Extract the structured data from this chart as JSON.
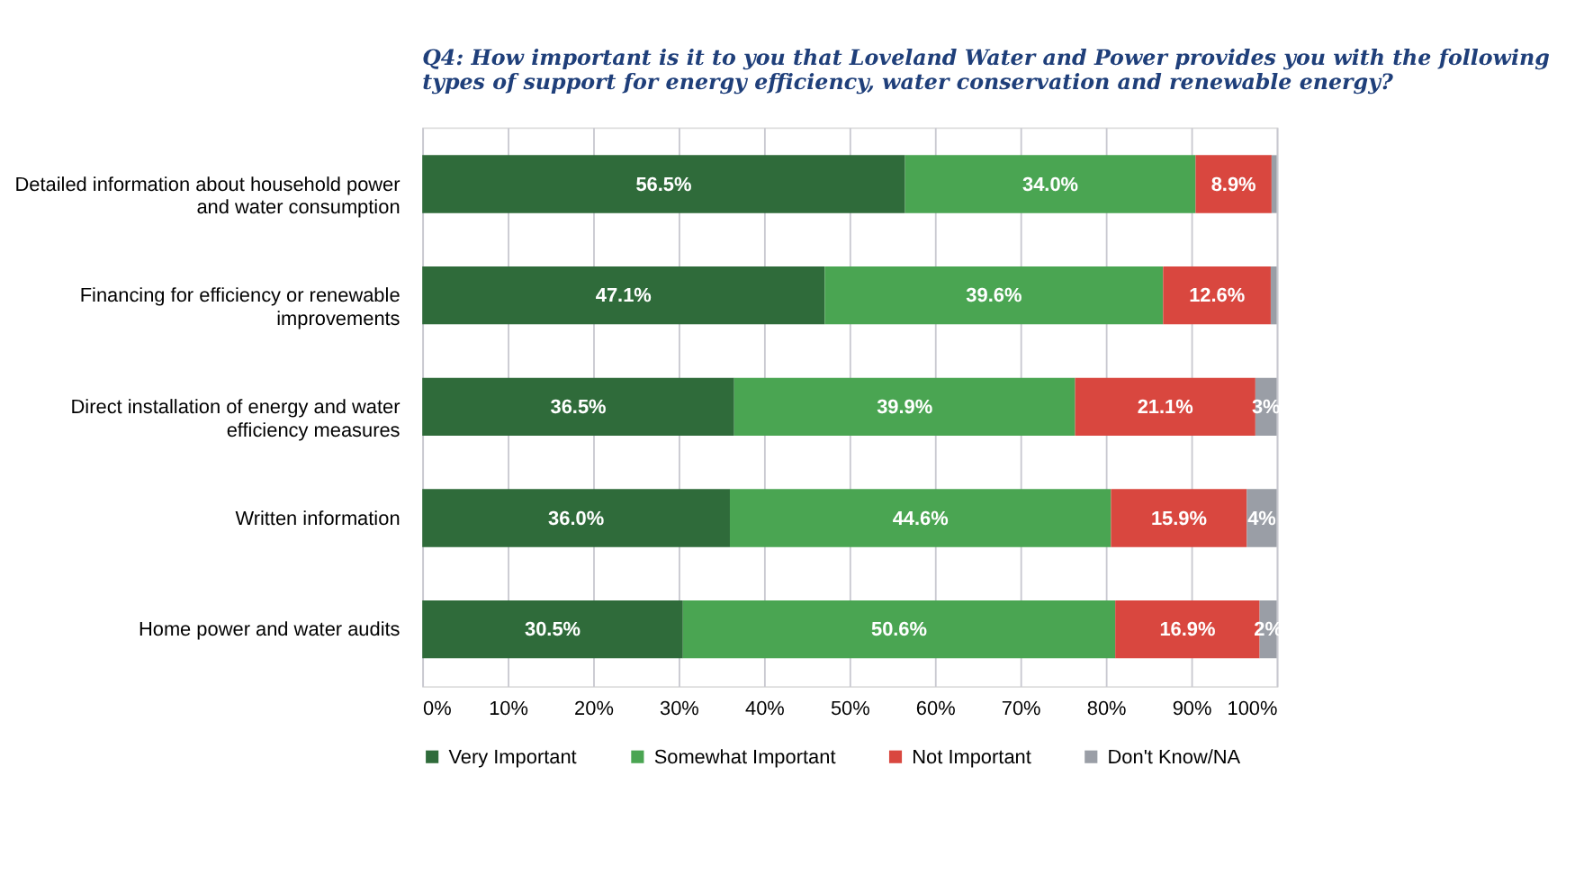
{
  "chart_data": {
    "type": "bar",
    "orientation": "horizontal",
    "stacked": true,
    "title": "Q4: How important is it to you that Loveland Water and Power provides you with the following types of support for energy efficiency, water conservation and renewable energy?",
    "categories": [
      "Detailed information about household power and water consumption",
      "Financing for efficiency or renewable improvements",
      "Direct installation of energy and water efficiency measures",
      "Written information",
      "Home power and water audits"
    ],
    "series": [
      {
        "name": "Very Important",
        "color": "#2f6b3a",
        "values": [
          56.5,
          47.1,
          36.5,
          36.0,
          30.5
        ],
        "value_labels": [
          "56.5%",
          "47.1%",
          "36.5%",
          "36.0%",
          "30.5%"
        ]
      },
      {
        "name": "Somewhat Important",
        "color": "#4aa552",
        "values": [
          34.0,
          39.6,
          39.9,
          44.6,
          50.6
        ],
        "value_labels": [
          "34.0%",
          "39.6%",
          "39.9%",
          "44.6%",
          "50.6%"
        ]
      },
      {
        "name": "Not Important",
        "color": "#d9473f",
        "values": [
          8.9,
          12.6,
          21.1,
          15.9,
          16.9
        ],
        "value_labels": [
          "8.9%",
          "12.6%",
          "21.1%",
          "15.9%",
          "16.9%"
        ]
      },
      {
        "name": "Don't Know/NA",
        "color": "#9a9ea6",
        "values": [
          0.6,
          0.7,
          2.5,
          3.5,
          2.0
        ],
        "value_labels": [
          null,
          null,
          "3%",
          "4%",
          "2%"
        ]
      }
    ],
    "xlim": [
      0,
      100
    ],
    "xticks": [
      {
        "value": 0,
        "label": "0%"
      },
      {
        "value": 10,
        "label": "10%"
      },
      {
        "value": 20,
        "label": "20%"
      },
      {
        "value": 30,
        "label": "30%"
      },
      {
        "value": 40,
        "label": "40%"
      },
      {
        "value": 50,
        "label": "50%"
      },
      {
        "value": 60,
        "label": "60%"
      },
      {
        "value": 70,
        "label": "70%"
      },
      {
        "value": 80,
        "label": "80%"
      },
      {
        "value": 90,
        "label": "90%"
      },
      {
        "value": 100,
        "label": "100%"
      }
    ],
    "grid": "x",
    "legend": "bottom"
  }
}
